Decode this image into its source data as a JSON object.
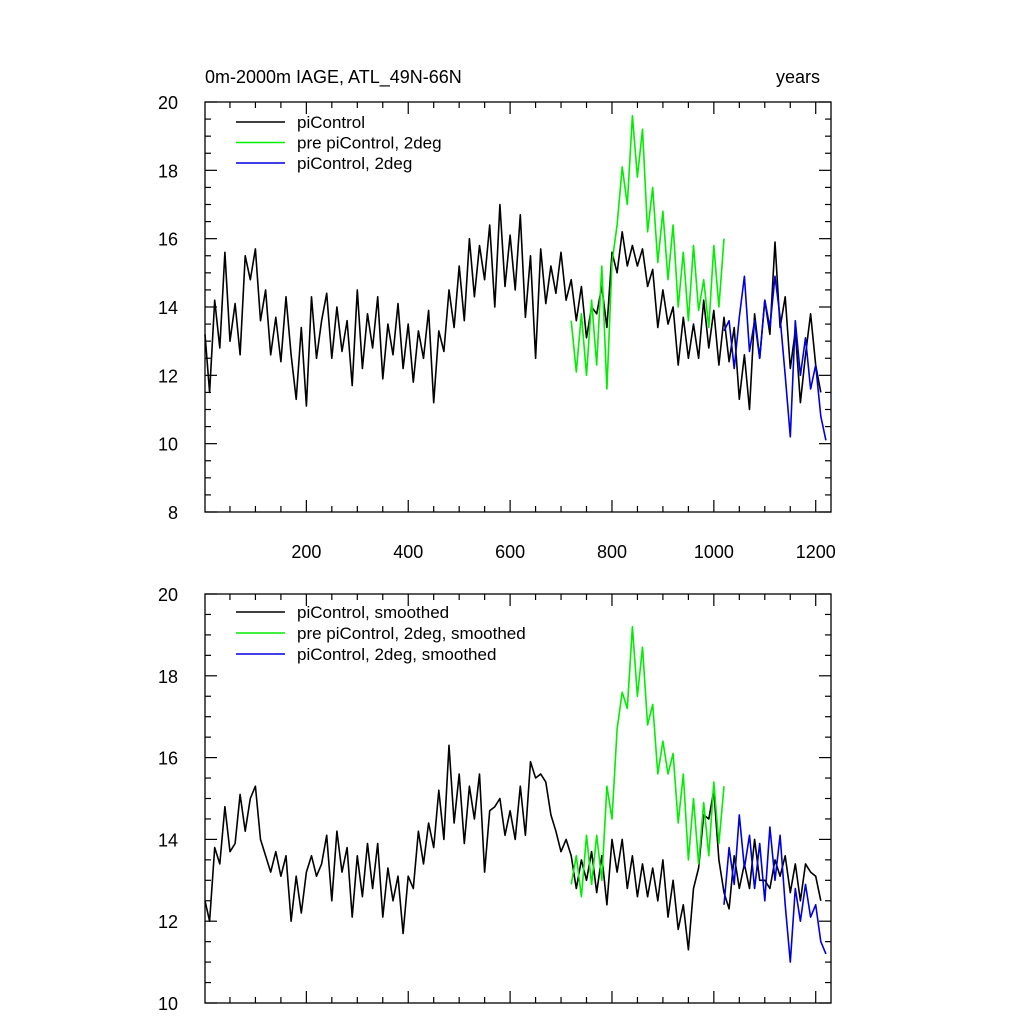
{
  "chart_data": [
    {
      "type": "line",
      "title_left": "0m-2000m IAGE, ATL_49N-66N",
      "title_right": "years",
      "xlabel": "",
      "ylabel": "",
      "xlim": [
        1,
        1230
      ],
      "ylim": [
        8,
        20
      ],
      "yticks": [
        "8",
        "10",
        "12",
        "14",
        "16",
        "18",
        "20"
      ],
      "xticks": [
        "200",
        "400",
        "600",
        "800",
        "1000",
        "1200"
      ],
      "legend_position": "top-left",
      "series": [
        {
          "name": "piControl",
          "color": "#000000",
          "x": [
            1,
            10,
            20,
            30,
            40,
            50,
            60,
            70,
            80,
            90,
            100,
            110,
            120,
            130,
            140,
            150,
            160,
            170,
            180,
            190,
            200,
            210,
            220,
            230,
            240,
            250,
            260,
            270,
            280,
            290,
            300,
            310,
            320,
            330,
            340,
            350,
            360,
            370,
            380,
            390,
            400,
            410,
            420,
            430,
            440,
            450,
            460,
            470,
            480,
            490,
            500,
            510,
            520,
            530,
            540,
            550,
            560,
            570,
            580,
            590,
            600,
            610,
            620,
            630,
            640,
            650,
            660,
            670,
            680,
            690,
            700,
            710,
            720,
            730,
            740,
            750,
            760,
            770,
            780,
            790,
            800,
            810,
            820,
            830,
            840,
            850,
            860,
            870,
            880,
            890,
            900,
            910,
            920,
            930,
            940,
            950,
            960,
            970,
            980,
            990,
            1000,
            1010,
            1020,
            1030,
            1040,
            1050,
            1060,
            1070,
            1080,
            1090,
            1100,
            1110,
            1120,
            1130,
            1140,
            1150,
            1160,
            1170,
            1180,
            1190,
            1200,
            1210
          ],
          "values": [
            13.2,
            11.5,
            14.2,
            12.8,
            15.6,
            13.0,
            14.1,
            12.6,
            15.5,
            14.8,
            15.7,
            13.6,
            14.5,
            12.6,
            13.7,
            12.4,
            14.3,
            12.6,
            11.3,
            13.4,
            11.1,
            14.3,
            12.5,
            13.6,
            14.4,
            12.5,
            14.0,
            12.7,
            13.6,
            11.7,
            14.5,
            12.2,
            13.8,
            12.8,
            14.3,
            11.9,
            13.5,
            12.6,
            14.1,
            12.2,
            13.5,
            11.8,
            13.3,
            12.5,
            13.9,
            11.2,
            13.3,
            12.7,
            14.5,
            13.4,
            15.2,
            13.6,
            16.0,
            14.3,
            15.8,
            14.8,
            16.4,
            14.0,
            17.0,
            14.6,
            16.1,
            14.5,
            16.7,
            13.7,
            15.5,
            12.5,
            15.7,
            14.1,
            15.2,
            14.4,
            15.6,
            14.2,
            14.8,
            13.6,
            14.6,
            13.1,
            14.0,
            13.8,
            14.6,
            13.4,
            15.6,
            15.0,
            16.2,
            15.2,
            15.8,
            15.2,
            15.7,
            14.6,
            15.1,
            13.4,
            14.5,
            13.5,
            14.0,
            12.3,
            13.7,
            12.5,
            13.5,
            12.5,
            14.2,
            12.8,
            13.9,
            12.3,
            13.7,
            12.4,
            13.4,
            11.3,
            12.6,
            11.0,
            13.8,
            12.5,
            14.2,
            13.2,
            15.9,
            13.4,
            14.3,
            12.2,
            13.3,
            11.2,
            12.6,
            13.8,
            12.3,
            11.5
          ]
        },
        {
          "name": "pre piControl, 2deg",
          "color": "#00ee00",
          "x": [
            720,
            730,
            740,
            750,
            760,
            770,
            780,
            790,
            800,
            810,
            820,
            830,
            840,
            850,
            860,
            870,
            880,
            890,
            900,
            910,
            920,
            930,
            940,
            950,
            960,
            970,
            980,
            990,
            1000,
            1010,
            1020
          ],
          "values": [
            13.6,
            12.1,
            13.8,
            12.0,
            14.2,
            12.3,
            15.2,
            11.6,
            15.3,
            16.4,
            18.1,
            17.0,
            19.6,
            17.8,
            19.2,
            16.2,
            17.5,
            15.3,
            16.8,
            14.8,
            16.4,
            14.0,
            15.6,
            13.6,
            15.8,
            13.9,
            14.8,
            13.4,
            15.8,
            14.0,
            16.0
          ]
        },
        {
          "name": "piControl, 2deg",
          "color": "#0000dd",
          "x": [
            1020,
            1030,
            1040,
            1050,
            1060,
            1070,
            1080,
            1090,
            1100,
            1110,
            1120,
            1130,
            1140,
            1150,
            1160,
            1170,
            1180,
            1190,
            1200,
            1210,
            1220
          ],
          "values": [
            13.3,
            13.6,
            12.2,
            13.7,
            14.9,
            12.7,
            13.6,
            12.5,
            14.2,
            13.4,
            14.9,
            13.7,
            12.0,
            10.2,
            13.6,
            12.0,
            13.1,
            11.6,
            12.3,
            10.8,
            10.1
          ]
        }
      ]
    },
    {
      "type": "line",
      "xlabel": "",
      "ylabel": "",
      "xlim": [
        1,
        1230
      ],
      "ylim": [
        10,
        20
      ],
      "yticks": [
        "10",
        "12",
        "14",
        "16",
        "18",
        "20"
      ],
      "legend_position": "top-left",
      "series": [
        {
          "name": "piControl, smoothed",
          "color": "#000000",
          "x": [
            1,
            10,
            20,
            30,
            40,
            50,
            60,
            70,
            80,
            90,
            100,
            110,
            120,
            130,
            140,
            150,
            160,
            170,
            180,
            190,
            200,
            210,
            220,
            230,
            240,
            250,
            260,
            270,
            280,
            290,
            300,
            310,
            320,
            330,
            340,
            350,
            360,
            370,
            380,
            390,
            400,
            410,
            420,
            430,
            440,
            450,
            460,
            470,
            480,
            490,
            500,
            510,
            520,
            530,
            540,
            550,
            560,
            570,
            580,
            590,
            600,
            610,
            620,
            630,
            640,
            650,
            660,
            670,
            680,
            690,
            700,
            710,
            720,
            730,
            740,
            750,
            760,
            770,
            780,
            790,
            800,
            810,
            820,
            830,
            840,
            850,
            860,
            870,
            880,
            890,
            900,
            910,
            920,
            930,
            940,
            950,
            960,
            970,
            980,
            990,
            1000,
            1010,
            1020,
            1030,
            1040,
            1050,
            1060,
            1070,
            1080,
            1090,
            1100,
            1110,
            1120,
            1130,
            1140,
            1150,
            1160,
            1170,
            1180,
            1190,
            1200,
            1210
          ],
          "values": [
            12.5,
            12.0,
            13.8,
            13.4,
            14.8,
            13.7,
            13.9,
            15.1,
            14.2,
            15.0,
            15.3,
            14.0,
            13.6,
            13.2,
            13.7,
            13.1,
            13.6,
            12.0,
            13.1,
            12.2,
            13.2,
            13.6,
            13.1,
            13.4,
            14.1,
            12.5,
            14.2,
            13.2,
            13.8,
            12.1,
            13.6,
            12.6,
            13.9,
            12.8,
            13.9,
            12.1,
            13.3,
            12.5,
            13.1,
            11.7,
            13.1,
            12.8,
            14.2,
            13.4,
            14.4,
            13.8,
            15.2,
            14.0,
            16.3,
            14.4,
            15.6,
            13.9,
            15.3,
            14.5,
            15.6,
            13.2,
            14.7,
            14.8,
            15.0,
            14.1,
            14.7,
            14.0,
            15.3,
            14.1,
            15.9,
            15.5,
            15.6,
            15.4,
            14.6,
            14.2,
            13.7,
            14.0,
            13.6,
            12.8,
            13.5,
            13.0,
            13.7,
            12.7,
            13.6,
            12.4,
            14.0,
            13.2,
            14.0,
            12.8,
            13.6,
            12.6,
            13.4,
            12.6,
            13.3,
            12.5,
            13.5,
            12.1,
            13.0,
            11.8,
            12.4,
            11.3,
            12.8,
            13.3,
            14.6,
            14.5,
            15.2,
            13.5,
            12.7,
            12.3,
            13.6,
            12.8,
            13.4,
            12.8,
            14.0,
            13.0,
            13.0,
            12.8,
            13.5,
            13.1,
            13.6,
            12.7,
            13.4,
            12.5,
            13.4,
            13.2,
            13.1,
            12.5
          ]
        },
        {
          "name": "pre piControl, 2deg, smoothed",
          "color": "#00ee00",
          "x": [
            720,
            730,
            740,
            750,
            760,
            770,
            780,
            790,
            800,
            810,
            820,
            830,
            840,
            850,
            860,
            870,
            880,
            890,
            900,
            910,
            920,
            930,
            940,
            950,
            960,
            970,
            980,
            990,
            1000,
            1010,
            1020
          ],
          "values": [
            12.9,
            13.6,
            12.6,
            14.1,
            12.9,
            14.1,
            13.0,
            15.3,
            14.5,
            16.7,
            17.6,
            17.2,
            19.2,
            17.5,
            18.7,
            16.8,
            17.3,
            15.6,
            16.4,
            15.6,
            16.1,
            14.4,
            15.6,
            13.5,
            15.0,
            13.4,
            14.9,
            13.6,
            15.4,
            13.9,
            15.3
          ]
        },
        {
          "name": "piControl, 2deg, smoothed",
          "color": "#0000dd",
          "x": [
            1020,
            1030,
            1040,
            1050,
            1060,
            1070,
            1080,
            1090,
            1100,
            1110,
            1120,
            1130,
            1140,
            1150,
            1160,
            1170,
            1180,
            1190,
            1200,
            1210,
            1220
          ],
          "values": [
            12.4,
            13.8,
            12.9,
            14.6,
            13.3,
            14.1,
            12.8,
            13.9,
            12.5,
            14.3,
            13.0,
            14.1,
            12.4,
            11.0,
            12.8,
            12.0,
            12.9,
            12.1,
            12.4,
            11.5,
            11.2
          ]
        }
      ]
    }
  ]
}
